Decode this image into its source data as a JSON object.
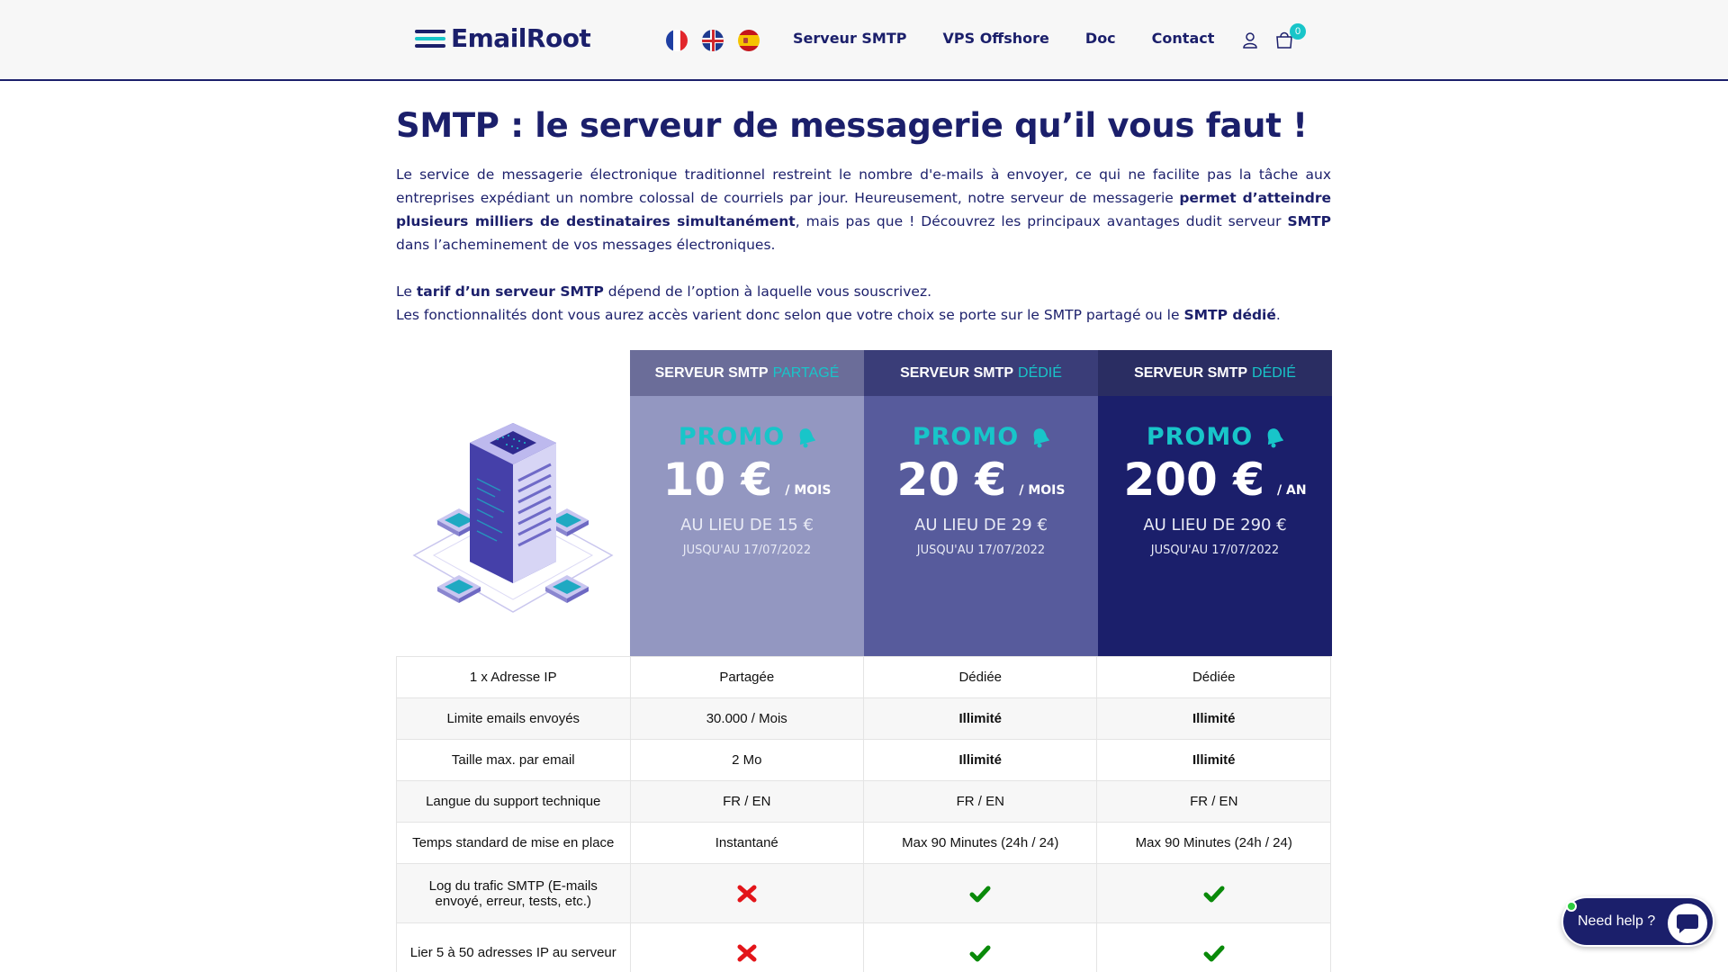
{
  "header": {
    "logo_text": "EmailRoot",
    "flags": [
      "flag-fr-icon",
      "flag-uk-icon",
      "flag-es-icon"
    ],
    "nav": [
      "Serveur SMTP",
      "VPS Offshore",
      "Doc",
      "Contact"
    ],
    "cart_count": "0"
  },
  "main": {
    "title": "SMTP : le serveur de messagerie qu’il vous faut !",
    "intro": {
      "part1": "Le service de messagerie électronique traditionnel restreint le nombre d'e-mails à envoyer, ce qui ne facilite pas la tâche aux entreprises expédiant un nombre colossal de courriels par jour. Heureusement, notre serveur de messagerie ",
      "bold1": "permet d’atteindre plusieurs milliers de destinataires simultanément",
      "part2": ", mais pas que ! Découvrez les principaux avantages dudit serveur ",
      "bold2": "SMTP",
      "part3": " dans l’acheminement de vos messages électroniques."
    },
    "tarif": {
      "part1": "Le ",
      "bold1": "tarif d’un serveur SMTP",
      "part2": " dépend de l’option à laquelle vous souscrivez.",
      "line2_part1": "Les fonctionnalités dont vous aurez accès varient donc selon que votre choix se porte sur le SMTP partagé ou le ",
      "line2_bold": "SMTP dédié",
      "line2_part2": "."
    }
  },
  "plans": [
    {
      "head": "SERVEUR SMTP",
      "accent": "PARTAGÉ",
      "promo": "PROMO",
      "price": "10 €",
      "per": "/ MOIS",
      "was": "AU LIEU DE 15 €",
      "until": "JUSQU'AU 17/07/2022"
    },
    {
      "head": "SERVEUR SMTP",
      "accent": "DÉDIÉ",
      "promo": "PROMO",
      "price": "20 €",
      "per": "/ MOIS",
      "was": "AU LIEU DE 29 €",
      "until": "JUSQU'AU 17/07/2022"
    },
    {
      "head": "SERVEUR SMTP",
      "accent": "DÉDIÉ",
      "promo": "PROMO",
      "price": "200 €",
      "per": "/ AN",
      "was": "AU LIEU DE 290 €",
      "until": "JUSQU'AU 17/07/2022"
    }
  ],
  "features": [
    {
      "label": "1 x Adresse IP",
      "v1": "Partagée",
      "v2": "Dédiée",
      "v3": "Dédiée"
    },
    {
      "label": "Limite emails envoyés",
      "v1": "30.000 / Mois",
      "v2": "Illimité",
      "v3": "Illimité"
    },
    {
      "label": "Taille max. par email",
      "v1": "2 Mo",
      "v2": "Illimité",
      "v3": "Illimité"
    },
    {
      "label": "Langue du support technique",
      "v1": "FR / EN",
      "v2": "FR / EN",
      "v3": "FR / EN"
    },
    {
      "label": "Temps standard de mise en place",
      "v1": "Instantané",
      "v2": "Max 90 Minutes (24h / 24)",
      "v3": "Max 90 Minutes (24h / 24)"
    },
    {
      "label": "Log du trafic SMTP (E-mails envoyé, erreur, tests, etc.)",
      "v1": "cross-icon",
      "v2": "check-icon",
      "v3": "check-icon"
    },
    {
      "label": "Lier 5 à 50 adresses IP au serveur",
      "v1": "cross-icon",
      "v2": "check-icon",
      "v3": "check-icon"
    }
  ],
  "help": {
    "label": "Need help ?"
  },
  "colors": {
    "brand": "#1b1f6b",
    "accent": "#18c5c9",
    "cross": "#e3151a",
    "check": "#0a8a0a"
  }
}
